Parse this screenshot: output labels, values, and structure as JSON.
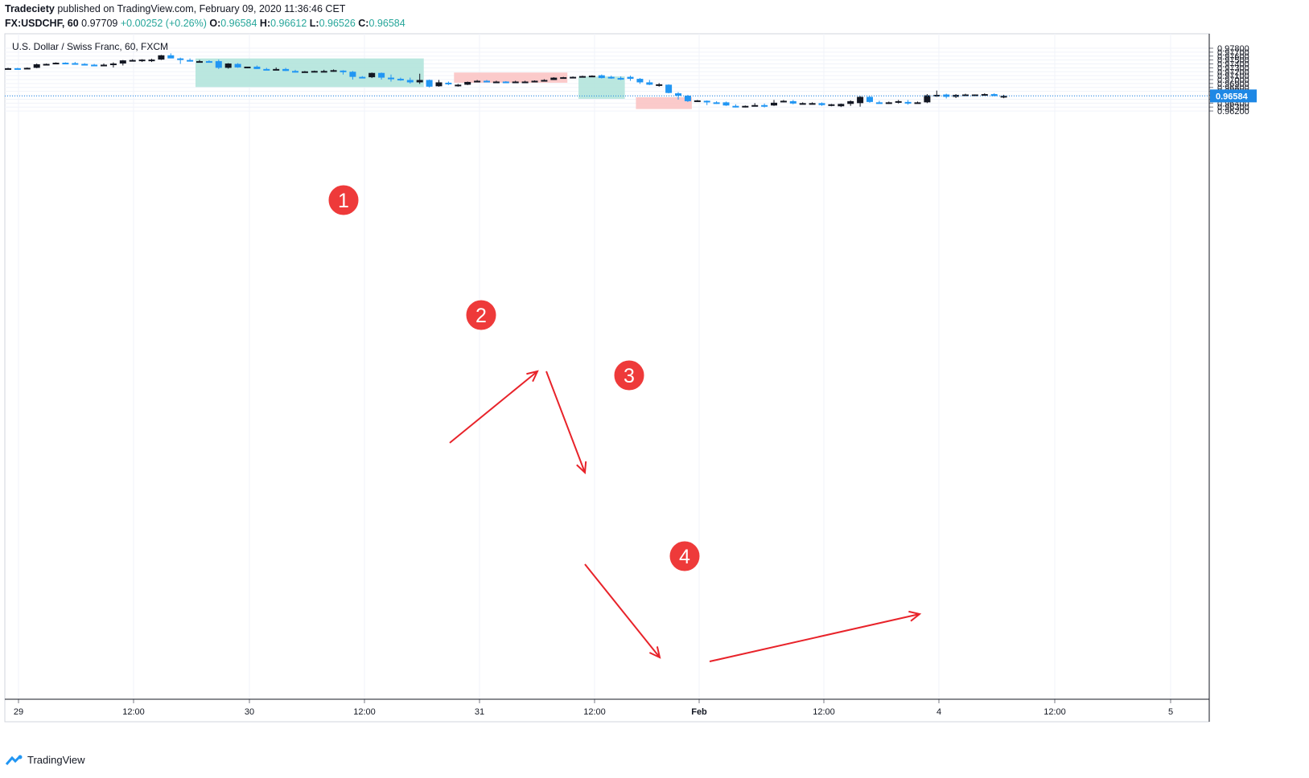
{
  "header": {
    "author": "Tradeciety",
    "published_text": "published on TradingView.com, February 09, 2020 11:36:46 CET",
    "symbol_line": "FX:USDCHF, 60",
    "last_price": "0.97709",
    "change": "+0.00252 (+0.26%)",
    "open_label": "O:",
    "open": "0.96584",
    "high_label": "H:",
    "high": "0.96612",
    "low_label": "L:",
    "low": "0.96526",
    "close_label": "C:",
    "close": "0.96584"
  },
  "chart_title": "U.S. Dollar / Swiss Franc, 60, FXCM",
  "current_price_label": "0.96584",
  "footer_brand": "TradingView",
  "colors": {
    "bull": "#131722",
    "bear": "#2196f3",
    "zone_green": "#b2e4dc",
    "zone_red": "#fbc4c4",
    "arrow": "#e8232a",
    "marker": "#ee3a3a",
    "price_line": "#1e88e5"
  },
  "chart_data": {
    "type": "candlestick",
    "title": "U.S. Dollar / Swiss Franc, 60, FXCM",
    "y_axis": {
      "ylim": [
        0.9612,
        0.9783
      ],
      "ticks": [
        "0.97800",
        "0.97700",
        "0.97600",
        "0.97500",
        "0.97400",
        "0.97300",
        "0.97200",
        "0.97100",
        "0.97000",
        "0.96900",
        "0.96800",
        "0.96700",
        "0.96600",
        "0.96500",
        "0.96400",
        "0.96300",
        "0.96200"
      ]
    },
    "x_axis": {
      "tick_labels": [
        "29",
        "12:00",
        "30",
        "12:00",
        "31",
        "12:00",
        "Feb",
        "12:00",
        "4",
        "12:00",
        "5"
      ],
      "bold_labels": [
        "Feb"
      ]
    },
    "grid": true,
    "current_price": 0.96584,
    "candles": [
      [
        0.97285,
        0.973,
        0.9727,
        0.9729
      ],
      [
        0.9729,
        0.973,
        0.9726,
        0.9728
      ],
      [
        0.9728,
        0.9731,
        0.9727,
        0.973
      ],
      [
        0.973,
        0.9741,
        0.9729,
        0.9739
      ],
      [
        0.9739,
        0.9741,
        0.9738,
        0.974
      ],
      [
        0.974,
        0.9744,
        0.9739,
        0.9743
      ],
      [
        0.9743,
        0.9744,
        0.974,
        0.9742
      ],
      [
        0.9742,
        0.9745,
        0.9739,
        0.974
      ],
      [
        0.974,
        0.9742,
        0.9736,
        0.9738
      ],
      [
        0.9738,
        0.974,
        0.9736,
        0.9737
      ],
      [
        0.9737,
        0.9741,
        0.9736,
        0.9738
      ],
      [
        0.9738,
        0.9744,
        0.9731,
        0.9741
      ],
      [
        0.9741,
        0.975,
        0.9736,
        0.9749
      ],
      [
        0.9749,
        0.9752,
        0.9747,
        0.975
      ],
      [
        0.975,
        0.9752,
        0.9745,
        0.9751
      ],
      [
        0.9751,
        0.9753,
        0.9745,
        0.9751
      ],
      [
        0.9751,
        0.9763,
        0.975,
        0.9762
      ],
      [
        0.9762,
        0.9767,
        0.9755,
        0.9754
      ],
      [
        0.9754,
        0.9756,
        0.974,
        0.975
      ],
      [
        0.975,
        0.9754,
        0.9746,
        0.9747
      ],
      [
        0.9747,
        0.975,
        0.9745,
        0.9747
      ],
      [
        0.9747,
        0.9749,
        0.9744,
        0.9746
      ],
      [
        0.9747,
        0.9751,
        0.9727,
        0.973
      ],
      [
        0.973,
        0.9742,
        0.9728,
        0.9741
      ],
      [
        0.974,
        0.9742,
        0.973,
        0.9731
      ],
      [
        0.9731,
        0.9732,
        0.9729,
        0.9733
      ],
      [
        0.9733,
        0.9736,
        0.9727,
        0.9727
      ],
      [
        0.9727,
        0.973,
        0.9725,
        0.9725
      ],
      [
        0.9725,
        0.9731,
        0.9724,
        0.9727
      ],
      [
        0.9727,
        0.973,
        0.9722,
        0.9722
      ],
      [
        0.9722,
        0.9725,
        0.9718,
        0.9719
      ],
      [
        0.972,
        0.9722,
        0.9719,
        0.9721
      ],
      [
        0.9721,
        0.9723,
        0.9719,
        0.9722
      ],
      [
        0.9722,
        0.9725,
        0.972,
        0.9722
      ],
      [
        0.9723,
        0.9726,
        0.972,
        0.9724
      ],
      [
        0.9723,
        0.9724,
        0.9713,
        0.9721
      ],
      [
        0.972,
        0.9722,
        0.97,
        0.9707
      ],
      [
        0.9707,
        0.9709,
        0.9705,
        0.9706
      ],
      [
        0.9706,
        0.9718,
        0.9704,
        0.9717
      ],
      [
        0.9717,
        0.9718,
        0.97,
        0.9705
      ],
      [
        0.9705,
        0.9713,
        0.9695,
        0.9702
      ],
      [
        0.9702,
        0.9705,
        0.9697,
        0.9699
      ],
      [
        0.9699,
        0.9705,
        0.969,
        0.9693
      ],
      [
        0.9693,
        0.9715,
        0.9689,
        0.9699
      ],
      [
        0.9699,
        0.97,
        0.968,
        0.9682
      ],
      [
        0.9683,
        0.9699,
        0.9682,
        0.9693
      ],
      [
        0.9692,
        0.9695,
        0.9686,
        0.9689
      ],
      [
        0.9683,
        0.9689,
        0.9682,
        0.9687
      ],
      [
        0.9687,
        0.9695,
        0.9686,
        0.9694
      ],
      [
        0.9694,
        0.9699,
        0.9693,
        0.9697
      ],
      [
        0.9697,
        0.9699,
        0.9693,
        0.9694
      ],
      [
        0.9694,
        0.9697,
        0.9693,
        0.9695
      ],
      [
        0.9695,
        0.9696,
        0.9693,
        0.9694
      ],
      [
        0.9694,
        0.9697,
        0.9693,
        0.9695
      ],
      [
        0.9694,
        0.9697,
        0.9693,
        0.9695
      ],
      [
        0.9695,
        0.9698,
        0.9695,
        0.9697
      ],
      [
        0.9697,
        0.9701,
        0.9696,
        0.9699
      ],
      [
        0.9699,
        0.9706,
        0.9699,
        0.9705
      ],
      [
        0.9705,
        0.9707,
        0.9703,
        0.9706
      ],
      [
        0.9706,
        0.9708,
        0.9705,
        0.9707
      ],
      [
        0.9708,
        0.971,
        0.9706,
        0.9709
      ],
      [
        0.9709,
        0.9711,
        0.9708,
        0.971
      ],
      [
        0.9711,
        0.9713,
        0.9703,
        0.9704
      ],
      [
        0.9707,
        0.971,
        0.9702,
        0.9704
      ],
      [
        0.9704,
        0.9708,
        0.9699,
        0.9702
      ],
      [
        0.9707,
        0.971,
        0.9697,
        0.9702
      ],
      [
        0.9702,
        0.9704,
        0.9689,
        0.9693
      ],
      [
        0.9693,
        0.9699,
        0.9686,
        0.9687
      ],
      [
        0.9687,
        0.9691,
        0.9682,
        0.9688
      ],
      [
        0.9687,
        0.9688,
        0.9665,
        0.9666
      ],
      [
        0.9665,
        0.9668,
        0.9649,
        0.9659
      ],
      [
        0.9659,
        0.9661,
        0.9643,
        0.9645
      ],
      [
        0.9645,
        0.9648,
        0.9643,
        0.9647
      ],
      [
        0.9646,
        0.9647,
        0.9635,
        0.9643
      ],
      [
        0.9642,
        0.9645,
        0.9638,
        0.9641
      ],
      [
        0.9642,
        0.9644,
        0.9633,
        0.9634
      ],
      [
        0.9633,
        0.9637,
        0.9629,
        0.9631
      ],
      [
        0.9631,
        0.9634,
        0.9629,
        0.9633
      ],
      [
        0.9634,
        0.964,
        0.9632,
        0.9635
      ],
      [
        0.9635,
        0.9639,
        0.9629,
        0.9634
      ],
      [
        0.9634,
        0.9648,
        0.9633,
        0.9641
      ],
      [
        0.9645,
        0.9648,
        0.9642,
        0.9646
      ],
      [
        0.9645,
        0.9648,
        0.9637,
        0.9639
      ],
      [
        0.9639,
        0.9642,
        0.9637,
        0.964
      ],
      [
        0.964,
        0.9642,
        0.9638,
        0.964
      ],
      [
        0.964,
        0.9642,
        0.9633,
        0.9635
      ],
      [
        0.9635,
        0.9638,
        0.9632,
        0.9637
      ],
      [
        0.9632,
        0.9639,
        0.963,
        0.9638
      ],
      [
        0.9638,
        0.9647,
        0.9633,
        0.9645
      ],
      [
        0.964,
        0.9658,
        0.9631,
        0.9656
      ],
      [
        0.9656,
        0.9658,
        0.9641,
        0.9643
      ],
      [
        0.9642,
        0.9646,
        0.9639,
        0.964
      ],
      [
        0.964,
        0.9644,
        0.9638,
        0.9642
      ],
      [
        0.9641,
        0.9648,
        0.9639,
        0.9645
      ],
      [
        0.9643,
        0.9648,
        0.9636,
        0.9639
      ],
      [
        0.9641,
        0.9644,
        0.964,
        0.9642
      ],
      [
        0.9642,
        0.9663,
        0.964,
        0.966
      ],
      [
        0.966,
        0.9672,
        0.9656,
        0.9661
      ],
      [
        0.9662,
        0.9664,
        0.9652,
        0.9656
      ],
      [
        0.9656,
        0.9663,
        0.9653,
        0.9661
      ],
      [
        0.9661,
        0.9664,
        0.966,
        0.9662
      ],
      [
        0.9661,
        0.9662,
        0.9659,
        0.9662
      ],
      [
        0.966,
        0.9665,
        0.9659,
        0.9663
      ],
      [
        0.9663,
        0.9665,
        0.9658,
        0.9658
      ],
      [
        0.96584,
        0.96612,
        0.96526,
        0.96584
      ]
    ],
    "annotations": [
      {
        "label": "1",
        "kind": "green-zone",
        "candle_range": [
          20,
          43
        ],
        "price_range": [
          0.9681,
          0.9754
        ]
      },
      {
        "label": "2",
        "kind": "red-zone",
        "candle_range": [
          47,
          58
        ],
        "price_range": [
          0.9692,
          0.9718
        ]
      },
      {
        "label": "3",
        "kind": "green-zone",
        "candle_range": [
          60,
          64
        ],
        "price_range": [
          0.9651,
          0.9708
        ]
      },
      {
        "label": "4",
        "kind": "red-zone",
        "candle_range": [
          66,
          71
        ],
        "price_range": [
          0.9625,
          0.9655
        ]
      }
    ]
  }
}
